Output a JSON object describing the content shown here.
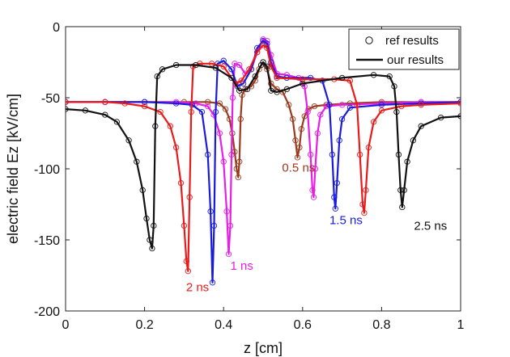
{
  "chart_data": {
    "type": "line",
    "xlabel": "z [cm]",
    "ylabel": "electric field Ez [kV/cm]",
    "xlim": [
      0,
      1
    ],
    "ylim": [
      -200,
      0
    ],
    "xticks": [
      0,
      0.2,
      0.4,
      0.6,
      0.8,
      1
    ],
    "xtick_labels": [
      "0",
      "0.2",
      "0.4",
      "0.6",
      "0.8",
      "1"
    ],
    "yticks": [
      0,
      -50,
      -100,
      -150,
      -200
    ],
    "ytick_labels": [
      "0",
      "-50",
      "-100",
      "-150",
      "-200"
    ],
    "legend": {
      "position": "top-right",
      "entries": [
        {
          "label": "ref results",
          "style": "circle-marker"
        },
        {
          "label": "our results",
          "style": "solid-line"
        }
      ]
    },
    "series": [
      {
        "name": "0.5 ns",
        "color": "#9a3a1e",
        "label_pos": [
          0.548,
          -102
        ],
        "points": [
          [
            0,
            -53
          ],
          [
            0.1,
            -53
          ],
          [
            0.2,
            -53
          ],
          [
            0.3,
            -53
          ],
          [
            0.36,
            -53
          ],
          [
            0.39,
            -54
          ],
          [
            0.405,
            -58
          ],
          [
            0.415,
            -65
          ],
          [
            0.422,
            -75
          ],
          [
            0.428,
            -88
          ],
          [
            0.433,
            -100
          ],
          [
            0.437,
            -106
          ],
          [
            0.44,
            -95
          ],
          [
            0.443,
            -65
          ],
          [
            0.447,
            -48
          ],
          [
            0.455,
            -44
          ],
          [
            0.47,
            -42
          ],
          [
            0.48,
            -38
          ],
          [
            0.49,
            -30
          ],
          [
            0.5,
            -25
          ],
          [
            0.51,
            -30
          ],
          [
            0.52,
            -40
          ],
          [
            0.535,
            -44
          ],
          [
            0.55,
            -46
          ],
          [
            0.565,
            -55
          ],
          [
            0.575,
            -65
          ],
          [
            0.582,
            -80
          ],
          [
            0.587,
            -92
          ],
          [
            0.592,
            -85
          ],
          [
            0.597,
            -72
          ],
          [
            0.605,
            -63
          ],
          [
            0.615,
            -58
          ],
          [
            0.63,
            -56
          ],
          [
            0.66,
            -55
          ],
          [
            0.72,
            -54
          ],
          [
            0.8,
            -53
          ],
          [
            0.9,
            -53
          ],
          [
            1,
            -53
          ]
        ]
      },
      {
        "name": "1 ns",
        "color": "#e61ee6",
        "label_pos": [
          0.417,
          -171
        ],
        "points": [
          [
            0,
            -53
          ],
          [
            0.1,
            -53
          ],
          [
            0.2,
            -53
          ],
          [
            0.28,
            -53
          ],
          [
            0.33,
            -54
          ],
          [
            0.36,
            -56
          ],
          [
            0.375,
            -62
          ],
          [
            0.39,
            -75
          ],
          [
            0.4,
            -95
          ],
          [
            0.408,
            -130
          ],
          [
            0.413,
            -160
          ],
          [
            0.417,
            -140
          ],
          [
            0.42,
            -90
          ],
          [
            0.423,
            -50
          ],
          [
            0.428,
            -26
          ],
          [
            0.44,
            -27
          ],
          [
            0.455,
            -33
          ],
          [
            0.47,
            -30
          ],
          [
            0.485,
            -18
          ],
          [
            0.5,
            -9
          ],
          [
            0.51,
            -10
          ],
          [
            0.52,
            -20
          ],
          [
            0.535,
            -33
          ],
          [
            0.56,
            -34
          ],
          [
            0.59,
            -36
          ],
          [
            0.605,
            -42
          ],
          [
            0.613,
            -60
          ],
          [
            0.62,
            -90
          ],
          [
            0.625,
            -115
          ],
          [
            0.628,
            -120
          ],
          [
            0.632,
            -100
          ],
          [
            0.638,
            -75
          ],
          [
            0.645,
            -62
          ],
          [
            0.66,
            -56
          ],
          [
            0.7,
            -55
          ],
          [
            0.8,
            -54
          ],
          [
            0.9,
            -53
          ],
          [
            1,
            -53
          ]
        ]
      },
      {
        "name": "1.5 ns",
        "color": "#1a1add",
        "label_pos": [
          0.668,
          -139
        ],
        "points": [
          [
            0,
            -53
          ],
          [
            0.1,
            -53
          ],
          [
            0.2,
            -53
          ],
          [
            0.28,
            -54
          ],
          [
            0.32,
            -55
          ],
          [
            0.345,
            -60
          ],
          [
            0.36,
            -90
          ],
          [
            0.367,
            -130
          ],
          [
            0.372,
            -180
          ],
          [
            0.376,
            -140
          ],
          [
            0.38,
            -60
          ],
          [
            0.385,
            -26
          ],
          [
            0.4,
            -24
          ],
          [
            0.42,
            -30
          ],
          [
            0.435,
            -42
          ],
          [
            0.45,
            -40
          ],
          [
            0.47,
            -30
          ],
          [
            0.485,
            -15
          ],
          [
            0.5,
            -10
          ],
          [
            0.51,
            -12
          ],
          [
            0.52,
            -25
          ],
          [
            0.535,
            -35
          ],
          [
            0.56,
            -36
          ],
          [
            0.62,
            -36
          ],
          [
            0.65,
            -38
          ],
          [
            0.668,
            -55
          ],
          [
            0.675,
            -90
          ],
          [
            0.68,
            -120
          ],
          [
            0.683,
            -128
          ],
          [
            0.687,
            -110
          ],
          [
            0.693,
            -80
          ],
          [
            0.7,
            -65
          ],
          [
            0.72,
            -57
          ],
          [
            0.8,
            -55
          ],
          [
            0.9,
            -54
          ],
          [
            1,
            -53
          ]
        ]
      },
      {
        "name": "2 ns",
        "color": "#e81a1a",
        "label_pos": [
          0.305,
          -186
        ],
        "points": [
          [
            0,
            -53
          ],
          [
            0.1,
            -53
          ],
          [
            0.15,
            -54
          ],
          [
            0.2,
            -56
          ],
          [
            0.24,
            -60
          ],
          [
            0.265,
            -70
          ],
          [
            0.28,
            -85
          ],
          [
            0.292,
            -110
          ],
          [
            0.3,
            -140
          ],
          [
            0.306,
            -165
          ],
          [
            0.31,
            -172
          ],
          [
            0.314,
            -120
          ],
          [
            0.318,
            -60
          ],
          [
            0.323,
            -28
          ],
          [
            0.34,
            -26
          ],
          [
            0.37,
            -26
          ],
          [
            0.4,
            -28
          ],
          [
            0.43,
            -40
          ],
          [
            0.445,
            -38
          ],
          [
            0.465,
            -30
          ],
          [
            0.485,
            -18
          ],
          [
            0.5,
            -13
          ],
          [
            0.51,
            -15
          ],
          [
            0.52,
            -28
          ],
          [
            0.535,
            -36
          ],
          [
            0.6,
            -37
          ],
          [
            0.68,
            -37
          ],
          [
            0.72,
            -38
          ],
          [
            0.738,
            -55
          ],
          [
            0.745,
            -90
          ],
          [
            0.752,
            -125
          ],
          [
            0.756,
            -131
          ],
          [
            0.76,
            -115
          ],
          [
            0.767,
            -85
          ],
          [
            0.78,
            -67
          ],
          [
            0.8,
            -59
          ],
          [
            0.85,
            -56
          ],
          [
            0.9,
            -55
          ],
          [
            1,
            -54
          ]
        ]
      },
      {
        "name": "2.5 ns",
        "color": "#111111",
        "label_pos": [
          0.882,
          -143
        ],
        "points": [
          [
            0,
            -58
          ],
          [
            0.05,
            -59
          ],
          [
            0.1,
            -62
          ],
          [
            0.13,
            -67
          ],
          [
            0.16,
            -80
          ],
          [
            0.18,
            -95
          ],
          [
            0.195,
            -115
          ],
          [
            0.205,
            -135
          ],
          [
            0.213,
            -150
          ],
          [
            0.219,
            -156
          ],
          [
            0.223,
            -140
          ],
          [
            0.227,
            -70
          ],
          [
            0.232,
            -35
          ],
          [
            0.245,
            -30
          ],
          [
            0.28,
            -27
          ],
          [
            0.33,
            -27
          ],
          [
            0.38,
            -29
          ],
          [
            0.42,
            -36
          ],
          [
            0.44,
            -45
          ],
          [
            0.46,
            -44
          ],
          [
            0.48,
            -35
          ],
          [
            0.495,
            -27
          ],
          [
            0.5,
            -25
          ],
          [
            0.51,
            -28
          ],
          [
            0.52,
            -45
          ],
          [
            0.535,
            -46
          ],
          [
            0.56,
            -44
          ],
          [
            0.6,
            -40
          ],
          [
            0.7,
            -36
          ],
          [
            0.78,
            -34
          ],
          [
            0.82,
            -35
          ],
          [
            0.832,
            -42
          ],
          [
            0.838,
            -60
          ],
          [
            0.843,
            -90
          ],
          [
            0.848,
            -115
          ],
          [
            0.852,
            -127
          ],
          [
            0.857,
            -115
          ],
          [
            0.865,
            -95
          ],
          [
            0.88,
            -80
          ],
          [
            0.9,
            -70
          ],
          [
            0.95,
            -64
          ],
          [
            1,
            -63
          ]
        ]
      }
    ]
  }
}
